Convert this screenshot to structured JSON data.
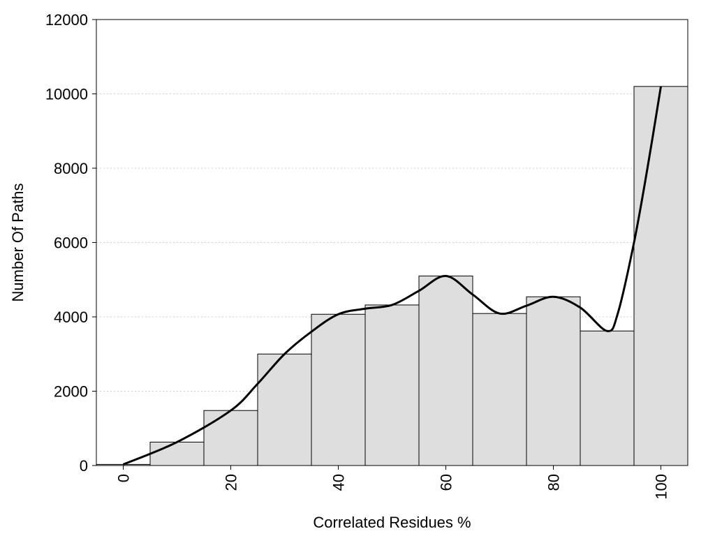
{
  "chart_data": {
    "type": "bar",
    "xlabel": "Correlated Residues %",
    "ylabel": "Number Of Paths",
    "xlim": [
      -10,
      100
    ],
    "ylim": [
      0,
      12000
    ],
    "x_ticks": [
      "0",
      "20",
      "40",
      "60",
      "80",
      "100"
    ],
    "y_ticks": [
      "0",
      "2000",
      "4000",
      "6000",
      "8000",
      "10000",
      "12000"
    ],
    "grid": true,
    "bin_width": 10,
    "bins": [
      {
        "x": 0,
        "value": 30
      },
      {
        "x": 10,
        "value": 630
      },
      {
        "x": 20,
        "value": 1480
      },
      {
        "x": 30,
        "value": 3000
      },
      {
        "x": 40,
        "value": 4070
      },
      {
        "x": 50,
        "value": 4320
      },
      {
        "x": 60,
        "value": 5100
      },
      {
        "x": 70,
        "value": 4090
      },
      {
        "x": 80,
        "value": 4540
      },
      {
        "x": 90,
        "value": 3620
      },
      {
        "x": 100,
        "value": 10200
      }
    ],
    "series": [
      {
        "type": "line",
        "x": [
          0,
          10,
          20,
          25,
          30,
          35,
          40,
          45,
          50,
          55,
          60,
          65,
          70,
          75,
          80,
          85,
          90,
          92,
          95,
          97.5,
          100
        ],
        "y": [
          30,
          630,
          1480,
          2200,
          3000,
          3600,
          4070,
          4220,
          4320,
          4700,
          5100,
          4600,
          4090,
          4300,
          4540,
          4250,
          3620,
          4100,
          6000,
          8000,
          10200
        ]
      }
    ],
    "colors": {
      "bar_fill": "#dedede",
      "bar_stroke": "#000000",
      "line": "#000000",
      "grid": "#cfcfcf"
    }
  }
}
